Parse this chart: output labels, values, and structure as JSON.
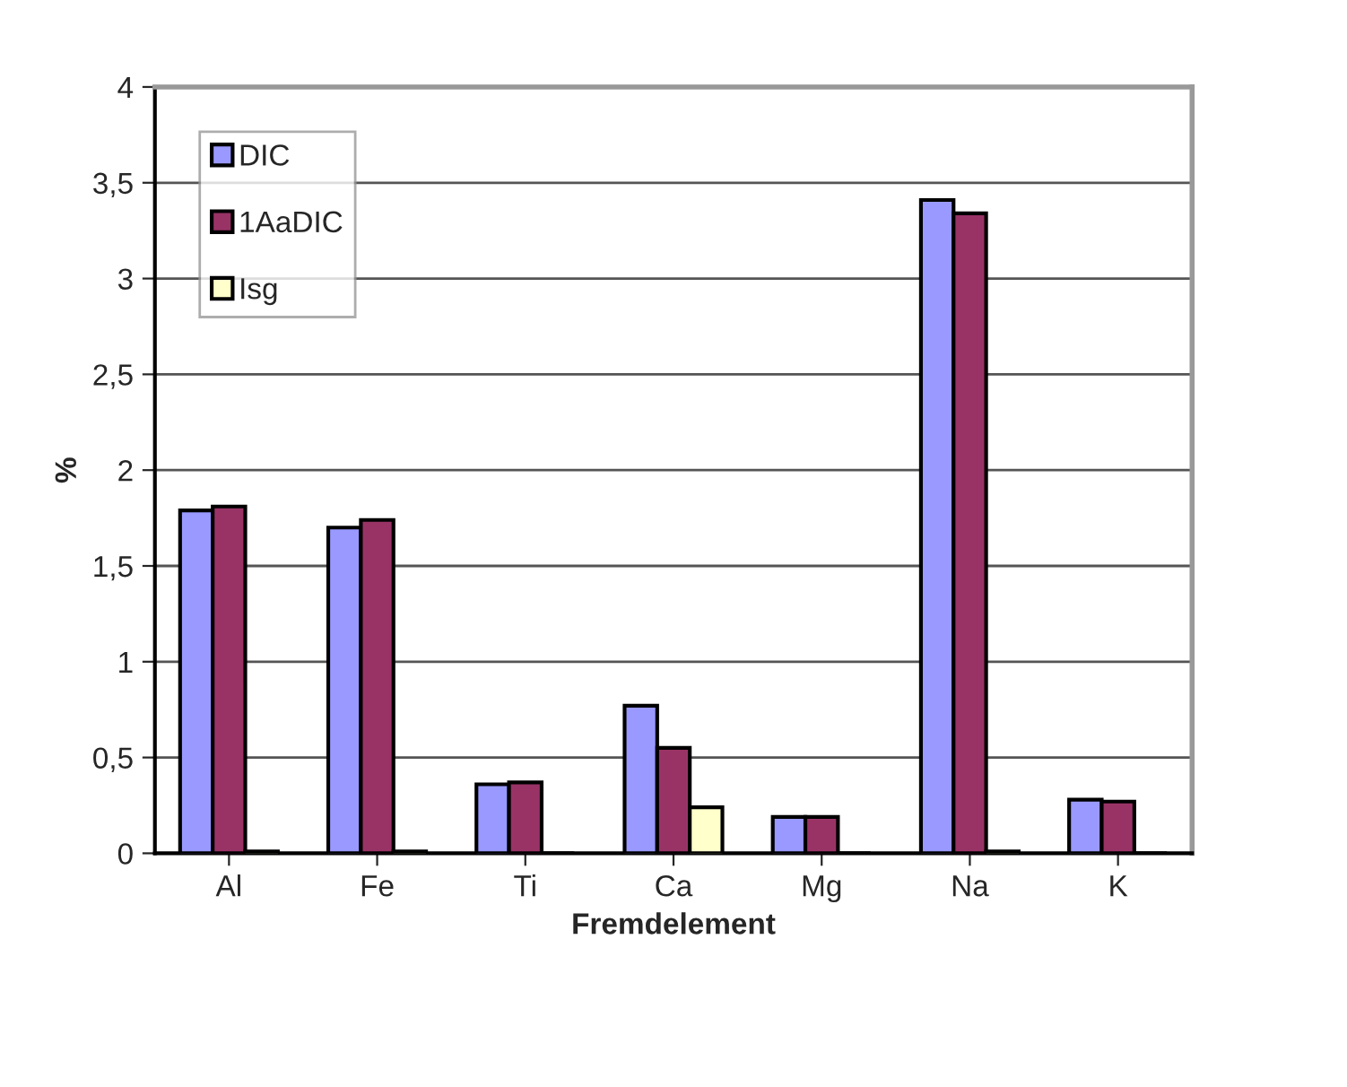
{
  "chart_data": {
    "type": "bar",
    "xlabel": "Fremdelement",
    "ylabel": "%",
    "categories": [
      "Al",
      "Fe",
      "Ti",
      "Ca",
      "Mg",
      "Na",
      "K"
    ],
    "series": [
      {
        "name": "DIC",
        "color": "#9999ff",
        "values": [
          1.79,
          1.7,
          0.36,
          0.77,
          0.19,
          3.41,
          0.28
        ]
      },
      {
        "name": "1AaDIC",
        "color": "#993366",
        "values": [
          1.81,
          1.74,
          0.37,
          0.55,
          0.19,
          3.34,
          0.27
        ]
      },
      {
        "name": "Isg",
        "color": "#ffffcc",
        "values": [
          0.01,
          0.01,
          null,
          0.24,
          null,
          0.01,
          null
        ]
      }
    ],
    "ylim": [
      0,
      4
    ],
    "yticks": [
      0,
      {
        "value": 0.5,
        "label": "0,5"
      },
      1,
      {
        "value": 1.5,
        "label": "1,5"
      },
      2,
      {
        "value": 2.5,
        "label": "2,5"
      },
      3,
      {
        "value": 3.5,
        "label": "3,5"
      },
      4
    ],
    "grid": "y",
    "legend": "top left"
  }
}
